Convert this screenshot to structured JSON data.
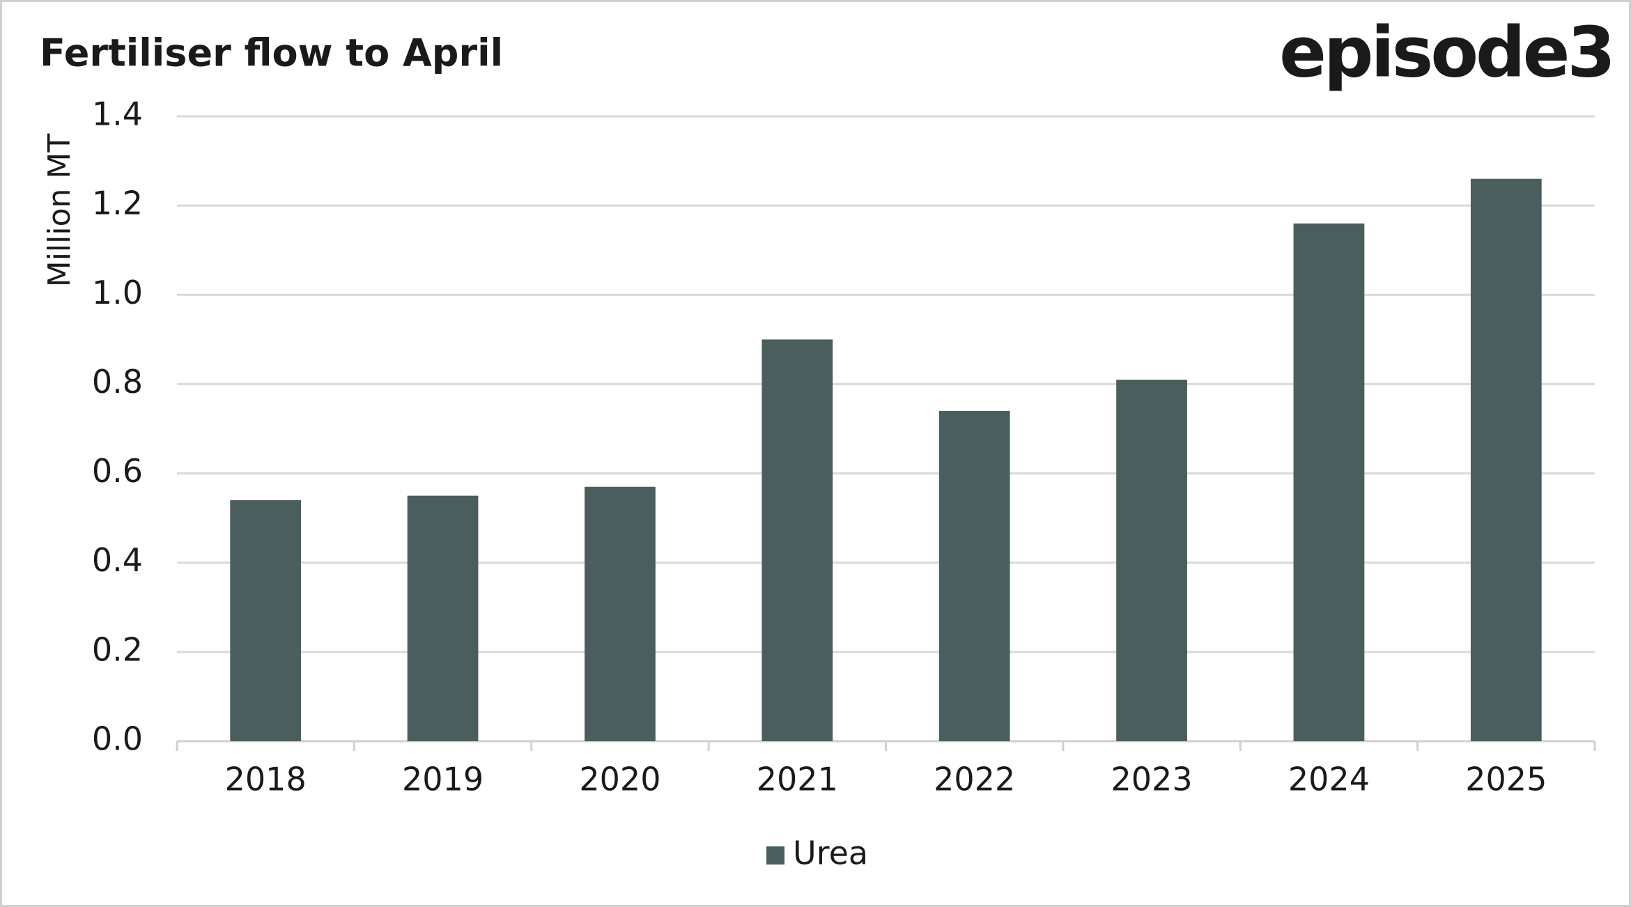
{
  "chart_data": {
    "type": "bar",
    "title": "Fertiliser flow to April",
    "logo": "episode3",
    "y_label": "Million MT",
    "categories": [
      "2018",
      "2019",
      "2020",
      "2021",
      "2022",
      "2023",
      "2024",
      "2025"
    ],
    "series": [
      {
        "name": "Urea",
        "color": "#4b5e5e",
        "values": [
          0.54,
          0.55,
          0.57,
          0.9,
          0.74,
          0.81,
          1.16,
          1.26
        ]
      }
    ],
    "ylim": [
      0,
      1.4
    ],
    "yticks": [
      {
        "value": 0,
        "label": "0.0"
      },
      0.2,
      0.4,
      0.6,
      0.8,
      {
        "value": 1,
        "label": "1.0"
      },
      1.2,
      1.4
    ],
    "grid": true,
    "legend": "bottom"
  }
}
